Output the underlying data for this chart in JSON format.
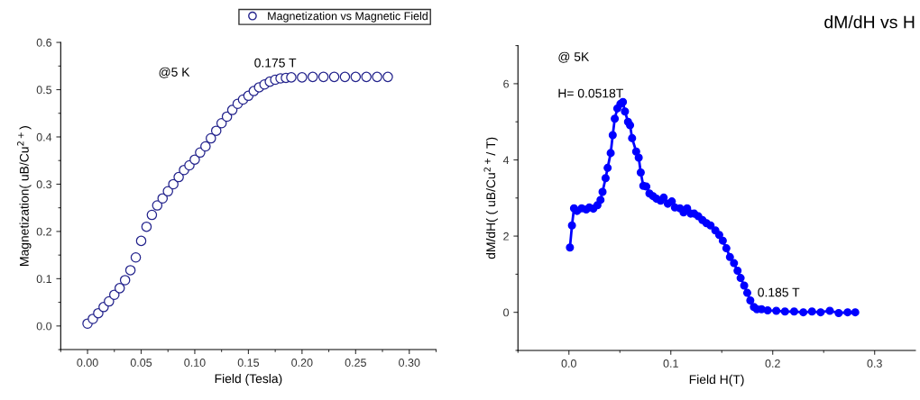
{
  "chart_data": [
    {
      "type": "scatter",
      "xlabel": "Field (Tesla)",
      "ylabel": "Magnetization( uB/Cu$^{2+}$)",
      "xlim": [
        -0.025,
        0.325
      ],
      "xticks": [
        {
          "value": 0,
          "label": "0.00"
        },
        0.05,
        {
          "value": 0.1,
          "label": "0.10"
        },
        0.15,
        {
          "value": 0.2,
          "label": "0.20"
        },
        0.25,
        {
          "value": 0.3,
          "label": "0.30"
        }
      ],
      "ylim": [
        -0.05,
        0.6
      ],
      "yticks": [
        {
          "value": 0,
          "label": "0.0"
        },
        0.1,
        0.2,
        0.3,
        0.4,
        0.5,
        0.6
      ],
      "marker": "circle",
      "grid": false,
      "legend": "top right",
      "annotations": [
        "@5 K",
        {
          "text": "0.175 T",
          "x": 0.175,
          "y": 0.521
        }
      ],
      "series": [
        {
          "name": "Magnetization vs Magnetic Field",
          "color": "#23238c",
          "x": [
            0,
            0.005,
            0.01,
            0.015,
            0.02,
            0.025,
            0.03,
            0.035,
            0.04,
            0.045,
            0.05,
            0.055,
            0.06,
            0.065,
            0.07,
            0.075,
            0.08,
            0.085,
            0.09,
            0.095,
            0.1,
            0.105,
            0.11,
            0.115,
            0.12,
            0.125,
            0.13,
            0.135,
            0.14,
            0.145,
            0.15,
            0.155,
            0.16,
            0.165,
            0.17,
            0.175,
            0.18,
            0.185,
            0.19,
            0.2,
            0.21,
            0.22,
            0.23,
            0.24,
            0.25,
            0.26,
            0.27,
            0.28
          ],
          "values": [
            0.005,
            0.015,
            0.027,
            0.04,
            0.052,
            0.066,
            0.08,
            0.097,
            0.118,
            0.145,
            0.18,
            0.21,
            0.235,
            0.255,
            0.27,
            0.285,
            0.3,
            0.315,
            0.33,
            0.34,
            0.352,
            0.367,
            0.38,
            0.397,
            0.413,
            0.429,
            0.443,
            0.457,
            0.47,
            0.479,
            0.487,
            0.497,
            0.505,
            0.511,
            0.517,
            0.521,
            0.524,
            0.525,
            0.526,
            0.526,
            0.527,
            0.527,
            0.527,
            0.527,
            0.527,
            0.527,
            0.527,
            0.527
          ]
        }
      ]
    },
    {
      "type": "line",
      "title": "dM/dH vs H",
      "xlabel": "Field H(T)",
      "ylabel": "dM/dH( ( uB/Cu$^{2+}$/ T)",
      "xlim": [
        -0.05,
        0.34
      ],
      "xticks": [
        {
          "value": 0,
          "label": "0.0"
        },
        0.1,
        0.2,
        0.3
      ],
      "ylim": [
        -1,
        7
      ],
      "yticks": [
        0,
        2,
        4,
        6
      ],
      "marker": "circle",
      "line_style": "solid",
      "grid": false,
      "annotations": [
        "@ 5K",
        "H= 0.0518T",
        {
          "text": "0.185 T",
          "x": 0.185,
          "y": 0.08
        }
      ],
      "series": [
        {
          "color": "#0000ff",
          "x": [
            0.001,
            0.003,
            0.005,
            0.008,
            0.0125,
            0.017,
            0.02,
            0.024,
            0.028,
            0.031,
            0.033,
            0.036,
            0.038,
            0.041,
            0.043,
            0.045,
            0.0475,
            0.0505,
            0.053,
            0.055,
            0.058,
            0.06,
            0.062,
            0.066,
            0.0685,
            0.0705,
            0.073,
            0.076,
            0.079,
            0.0825,
            0.086,
            0.09,
            0.093,
            0.097,
            0.101,
            0.104,
            0.109,
            0.1125,
            0.116,
            0.1195,
            0.123,
            0.127,
            0.131,
            0.135,
            0.139,
            0.1437,
            0.1475,
            0.151,
            0.1545,
            0.158,
            0.162,
            0.1655,
            0.1685,
            0.172,
            0.175,
            0.178,
            0.1815,
            0.1845,
            0.189,
            0.195,
            0.2035,
            0.212,
            0.221,
            0.23,
            0.2385,
            0.247,
            0.256,
            0.2647,
            0.2735,
            0.281
          ],
          "values": [
            1.7,
            2.28,
            2.73,
            2.66,
            2.73,
            2.7,
            2.75,
            2.72,
            2.81,
            2.95,
            3.16,
            3.52,
            3.79,
            4.18,
            4.65,
            5.08,
            5.35,
            5.47,
            5.52,
            5.27,
            5.0,
            4.91,
            4.57,
            4.22,
            4.06,
            3.67,
            3.32,
            3.3,
            3.12,
            3.05,
            2.98,
            2.93,
            3.01,
            2.85,
            2.91,
            2.75,
            2.73,
            2.62,
            2.73,
            2.59,
            2.59,
            2.52,
            2.42,
            2.34,
            2.28,
            2.15,
            2.03,
            1.88,
            1.68,
            1.45,
            1.29,
            1.09,
            0.9,
            0.7,
            0.51,
            0.31,
            0.14,
            0.08,
            0.08,
            0.05,
            0.04,
            0.02,
            0.02,
            0.0,
            0.02,
            0.0,
            0.04,
            -0.02,
            0.0,
            0.0
          ]
        }
      ]
    }
  ]
}
